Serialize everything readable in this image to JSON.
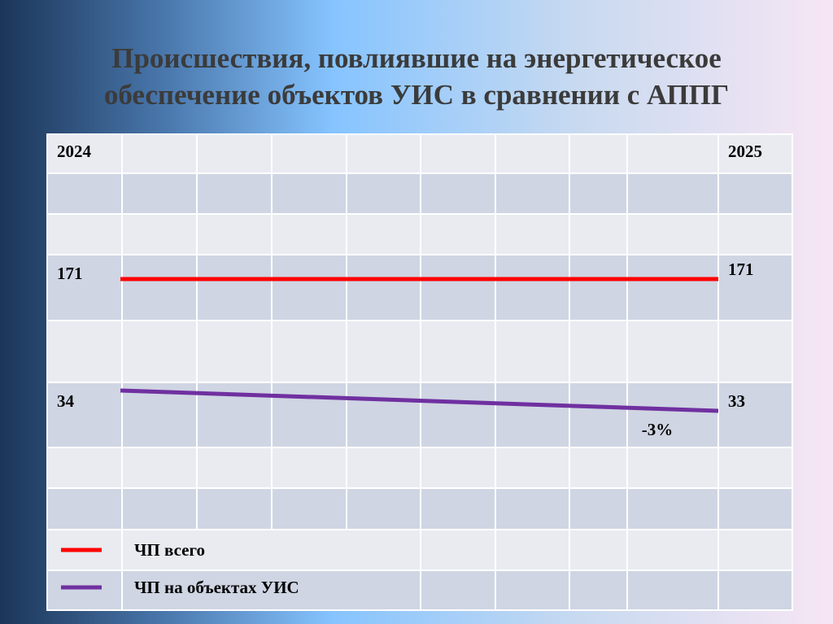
{
  "title_lines": [
    "Происшествия, повлиявшие на энергетическое",
    "обеспечение объектов УИС в сравнении с АППГ"
  ],
  "chart_data": {
    "type": "line",
    "x": [
      "2024",
      "2025"
    ],
    "series": [
      {
        "name": "ЧП всего",
        "color": "#ff0000",
        "values": [
          171,
          171
        ]
      },
      {
        "name": "ЧП на объектах УИС",
        "color": "#7030a0",
        "values": [
          34,
          33
        ],
        "change_label": "-3%"
      }
    ]
  }
}
